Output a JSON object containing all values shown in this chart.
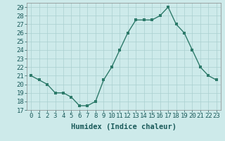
{
  "x": [
    0,
    1,
    2,
    3,
    4,
    5,
    6,
    7,
    8,
    9,
    10,
    11,
    12,
    13,
    14,
    15,
    16,
    17,
    18,
    19,
    20,
    21,
    22,
    23
  ],
  "y": [
    21,
    20.5,
    20,
    19,
    19,
    18.5,
    17.5,
    17.5,
    18,
    20.5,
    22,
    24,
    26,
    27.5,
    27.5,
    27.5,
    28,
    29,
    27,
    26,
    24,
    22,
    21,
    20.5
  ],
  "line_color": "#2d7a6a",
  "marker_color": "#2d7a6a",
  "bg_color": "#cdeaea",
  "grid_color": "#aacfcf",
  "xlabel": "Humidex (Indice chaleur)",
  "xlim": [
    -0.5,
    23.5
  ],
  "ylim": [
    17,
    29.5
  ],
  "yticks": [
    17,
    18,
    19,
    20,
    21,
    22,
    23,
    24,
    25,
    26,
    27,
    28,
    29
  ],
  "xticks": [
    0,
    1,
    2,
    3,
    4,
    5,
    6,
    7,
    8,
    9,
    10,
    11,
    12,
    13,
    14,
    15,
    16,
    17,
    18,
    19,
    20,
    21,
    22,
    23
  ],
  "xtick_labels": [
    "0",
    "1",
    "2",
    "3",
    "4",
    "5",
    "6",
    "7",
    "8",
    "9",
    "10",
    "11",
    "12",
    "13",
    "14",
    "15",
    "16",
    "17",
    "18",
    "19",
    "20",
    "21",
    "22",
    "23"
  ],
  "font_family": "monospace",
  "xlabel_fontsize": 7.5,
  "tick_fontsize": 6.5,
  "marker_size": 2.5,
  "line_width": 1.0
}
